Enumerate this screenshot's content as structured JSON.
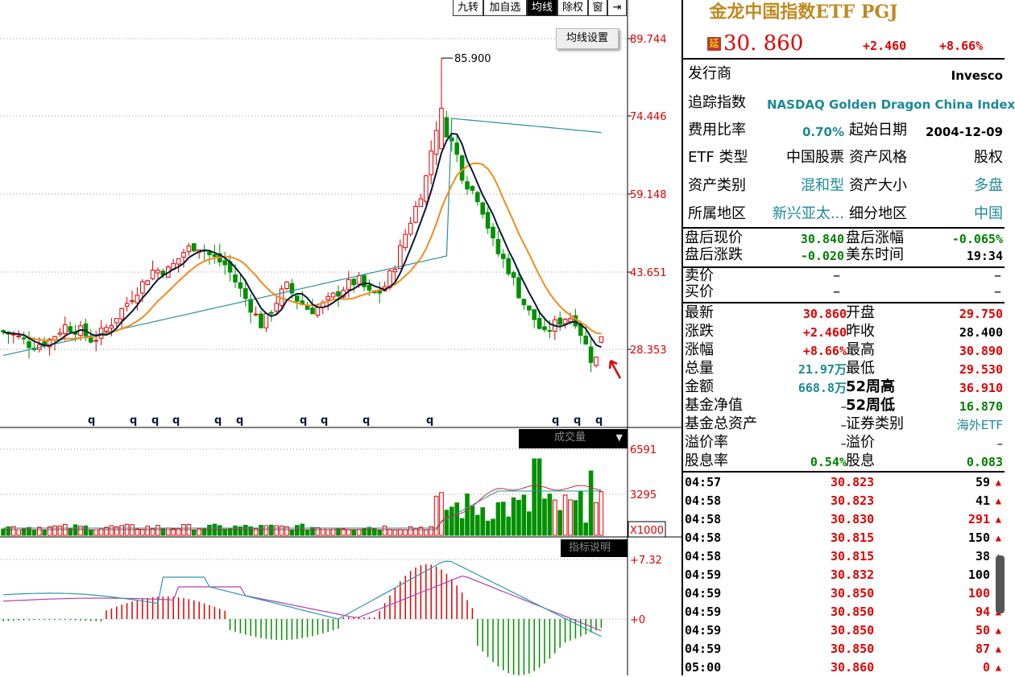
{
  "toolbar": {
    "buttons": [
      {
        "label": "九转",
        "active": false
      },
      {
        "label": "加自选",
        "active": false
      },
      {
        "label": "均线",
        "active": true
      },
      {
        "label": "除权",
        "active": false
      },
      {
        "label": "窗",
        "active": false
      }
    ],
    "pin_icon": "pin-icon",
    "avg_setting_label": "均线设置"
  },
  "price_axis": {
    "ticks": [
      "89.744",
      "74.446",
      "59.148",
      "43.651",
      "28.353"
    ],
    "peak_label": "85.900"
  },
  "signal_marker": "q",
  "volume_panel": {
    "header_label": "成交量",
    "ticks": [
      "6591",
      "3295",
      "X1000"
    ]
  },
  "indicator_panel": {
    "header_label": "指标说明",
    "ticks": [
      "+7.32",
      "+0"
    ]
  },
  "colors": {
    "up": "#e00000",
    "down": "#009000",
    "ma_short": "#0a1a3a",
    "ma_mid": "#f08c1e",
    "ma_long": "#2a8f9a"
  },
  "header": {
    "title": "金龙中国指数ETF PGJ",
    "delay_badge": "延",
    "price": "30. 860",
    "change": "+2.460",
    "change_pct": "+8.66%"
  },
  "info": [
    {
      "label": "发行商",
      "value": "Invesco"
    },
    {
      "label": "追踪指数",
      "value": "NASDAQ Golden Dragon China Index"
    },
    {
      "label": "费用比率",
      "value": "0.70%",
      "label2": "起始日期",
      "value2": "2004-12-09"
    },
    {
      "label": "ETF 类型",
      "value": "中国股票",
      "label2": "资产风格",
      "value2": "股权"
    },
    {
      "label": "资产类别",
      "value": "混和型",
      "label2": "资产大小",
      "value2": "多盘"
    },
    {
      "label": "所属地区",
      "value": "新兴亚太...",
      "label2": "细分地区",
      "value2": "中国"
    }
  ],
  "after_hours": [
    {
      "label": "盘后现价",
      "value": "30.840",
      "label2": "盘后涨幅",
      "value2": "-0.065%"
    },
    {
      "label": "盘后涨跌",
      "value": "-0.020",
      "label2": "美东时间",
      "value2": "19:34"
    }
  ],
  "quote_book": [
    {
      "label": "卖价",
      "value": "–",
      "value2": "–"
    },
    {
      "label": "买价",
      "value": "–",
      "value2": "–"
    }
  ],
  "stats": [
    {
      "label": "最新",
      "value": "30.860",
      "label2": "开盘",
      "value2": "29.750"
    },
    {
      "label": "涨跌",
      "value": "+2.460",
      "label2": "昨收",
      "value2": "28.400"
    },
    {
      "label": "涨幅",
      "value": "+8.66%",
      "label2": "最高",
      "value2": "30.890"
    },
    {
      "label": "总量",
      "value": "21.97万",
      "label2": "最低",
      "value2": "29.530"
    },
    {
      "label": "金额",
      "value": "668.8万",
      "label2": "52周高",
      "value2": "36.910"
    },
    {
      "label": "基金净值",
      "value": "–",
      "label2": "52周低",
      "value2": "16.870"
    },
    {
      "label": "基金总资产",
      "value": "–",
      "label2": "证券类别",
      "value2": "海外ETF"
    },
    {
      "label": "溢价率",
      "value": "–",
      "label2": "溢价",
      "value2": "–"
    },
    {
      "label": "股息率",
      "value": "0.54%",
      "label2": "股息",
      "value2": "0.083"
    }
  ],
  "ticks": [
    {
      "time": "04:57",
      "price": "30.823",
      "vol": "59"
    },
    {
      "time": "04:58",
      "price": "30.823",
      "vol": "41"
    },
    {
      "time": "04:58",
      "price": "30.830",
      "vol": "291"
    },
    {
      "time": "04:58",
      "price": "30.815",
      "vol": "150"
    },
    {
      "time": "04:58",
      "price": "30.815",
      "vol": "38"
    },
    {
      "time": "04:59",
      "price": "30.832",
      "vol": "100"
    },
    {
      "time": "04:59",
      "price": "30.850",
      "vol": "100"
    },
    {
      "time": "04:59",
      "price": "30.850",
      "vol": "94"
    },
    {
      "time": "04:59",
      "price": "30.850",
      "vol": "50"
    },
    {
      "time": "04:59",
      "price": "30.850",
      "vol": "87"
    },
    {
      "time": "05:00",
      "price": "30.860",
      "vol": "0"
    }
  ]
}
